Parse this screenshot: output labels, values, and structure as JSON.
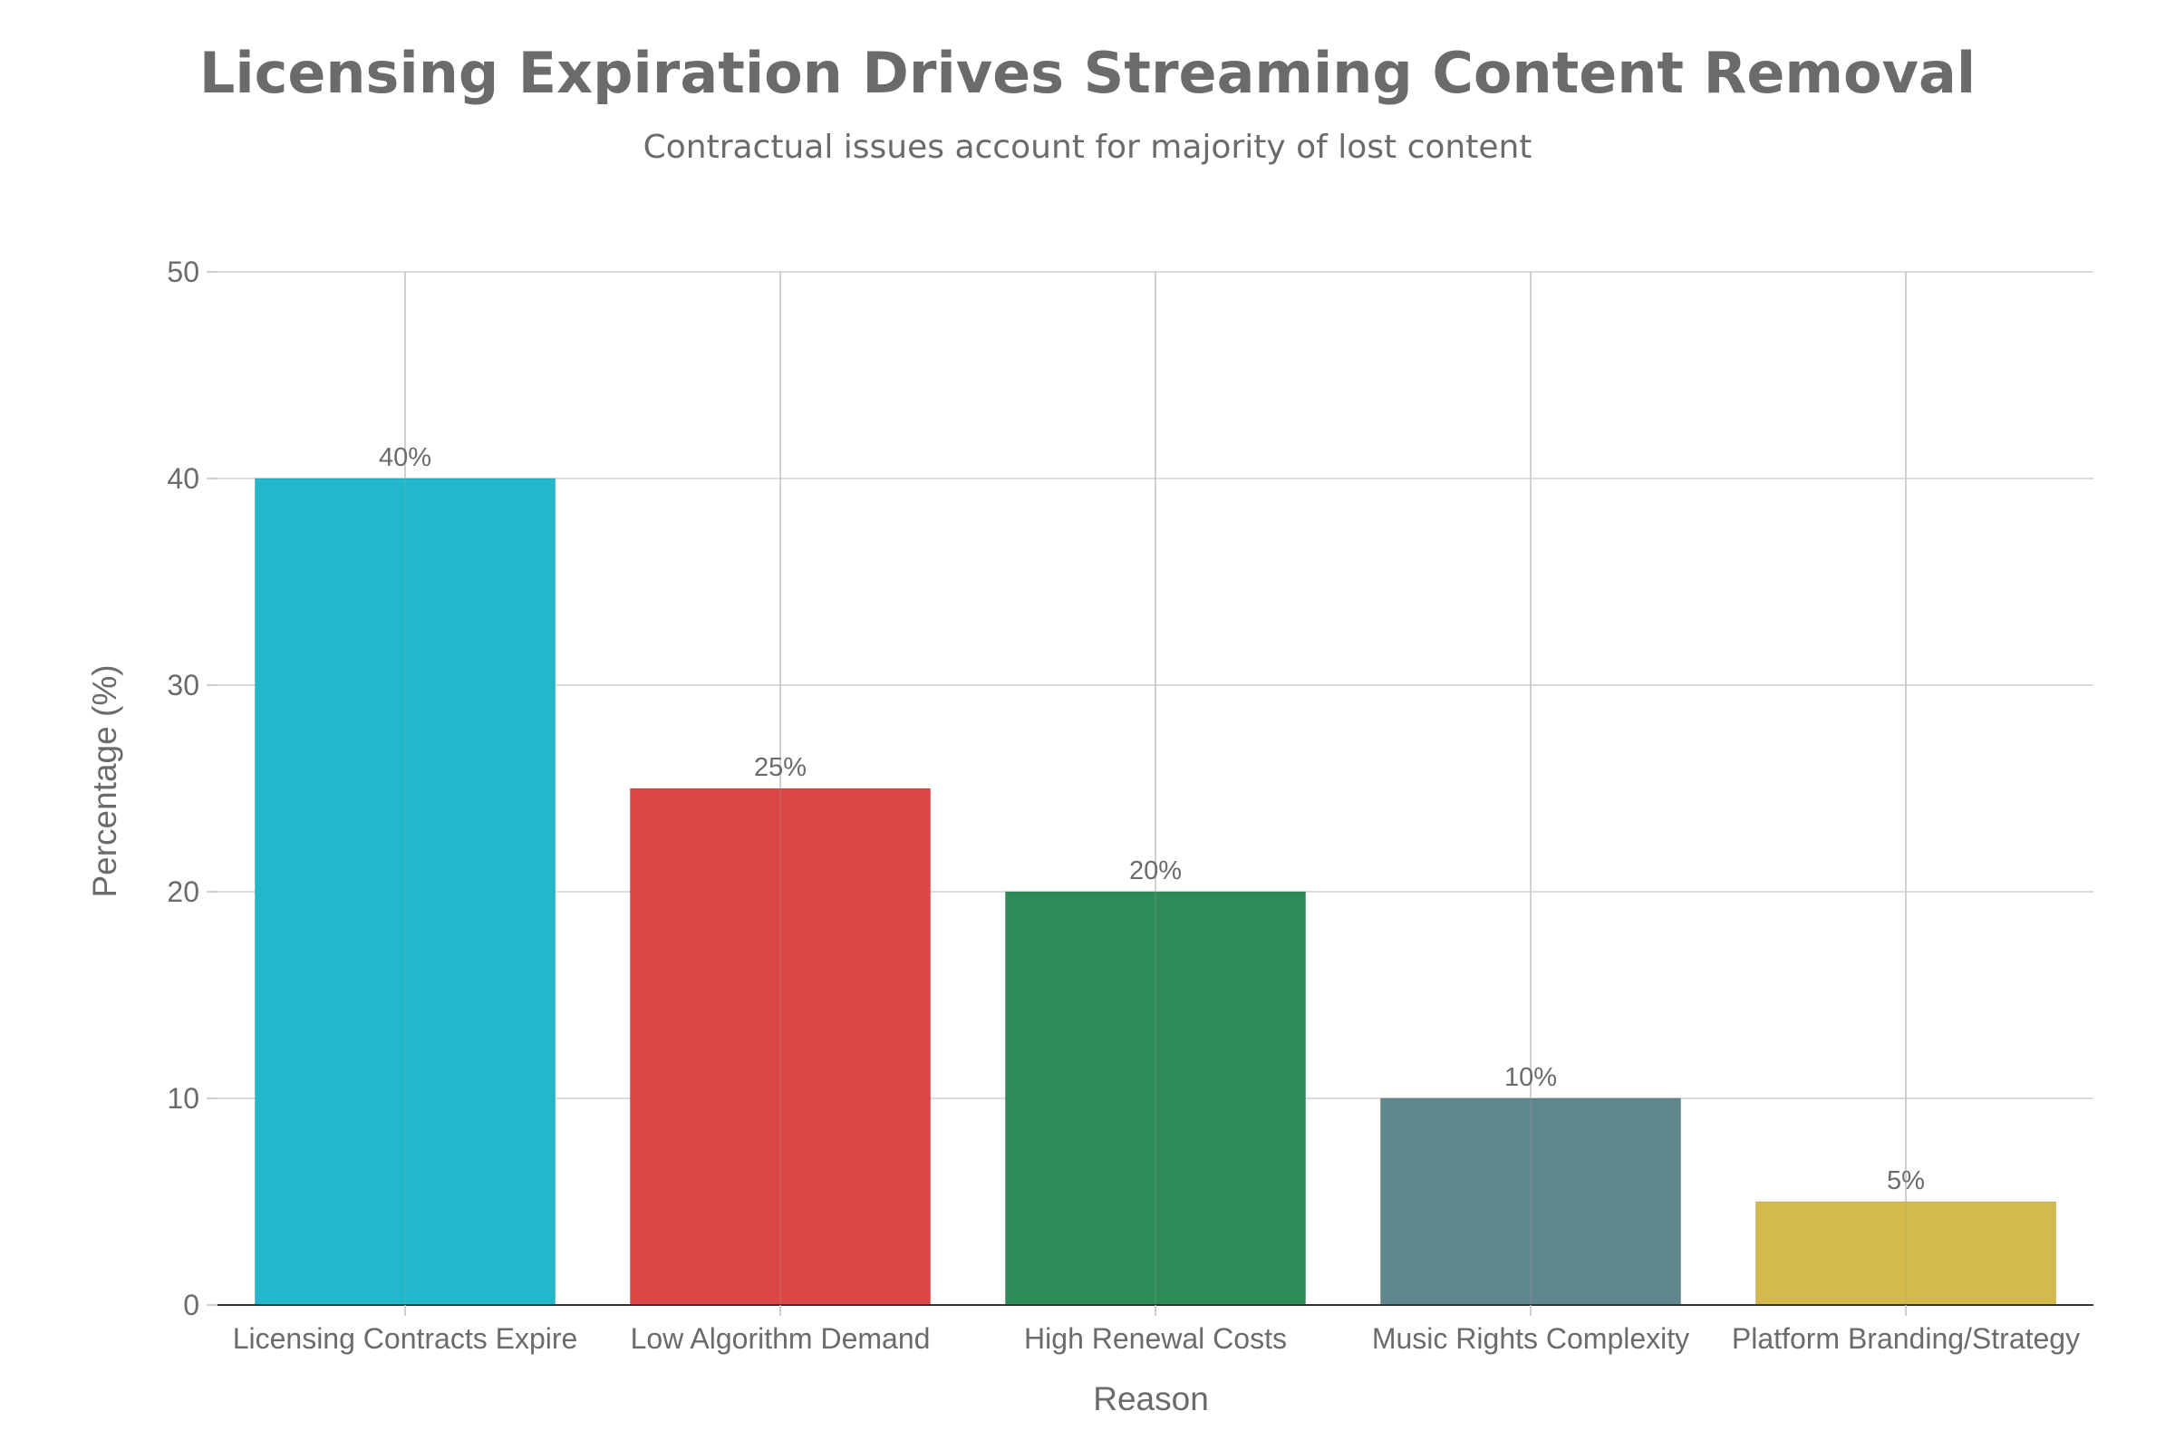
{
  "chart_data": {
    "type": "bar",
    "title": "Licensing Expiration Drives Streaming Content Removal",
    "subtitle": "Contractual issues account for majority of lost content",
    "xlabel": "Reason",
    "ylabel": "Percentage (%)",
    "categories": [
      "Licensing Contracts Expire",
      "Low Algorithm Demand",
      "High Renewal Costs",
      "Music Rights Complexity",
      "Platform Branding/Strategy"
    ],
    "values": [
      40,
      25,
      20,
      10,
      5
    ],
    "data_labels": [
      "40%",
      "25%",
      "20%",
      "10%",
      "5%"
    ],
    "colors": [
      "#21b8cc",
      "#db4647",
      "#2e8a57",
      "#5e878e",
      "#d4b94b"
    ],
    "ylim": [
      0,
      50
    ],
    "yticks": [
      0,
      10,
      20,
      30,
      40,
      50
    ],
    "grid": true,
    "legend": "none"
  }
}
